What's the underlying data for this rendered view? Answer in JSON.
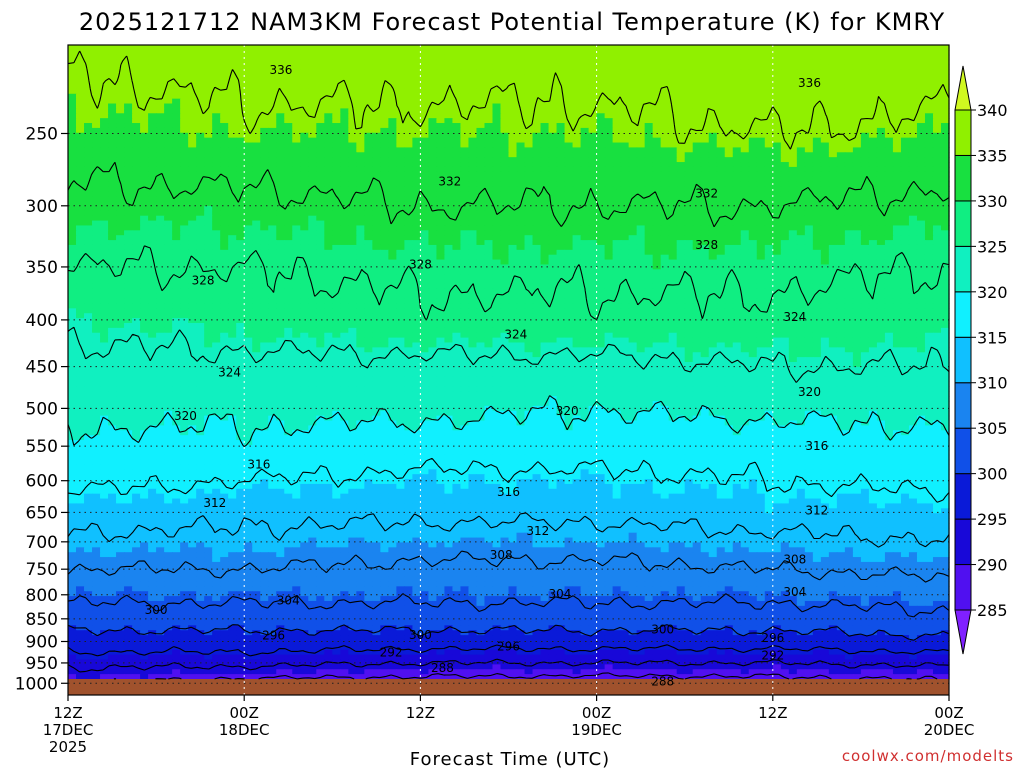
{
  "title": "2025121712 NAM3KM Forecast Potential Temperature (K) for KMRY",
  "credit": "coolwx.com/modelts",
  "chart_data": {
    "type": "heatmap",
    "title": "2025121712 NAM3KM Forecast Potential Temperature (K) for KMRY",
    "xlabel": "Forecast Time (UTC)",
    "ylabel": "",
    "y_scale": "log",
    "ylim": [
      1030,
      200
    ],
    "xlim_hours": [
      0,
      60
    ],
    "x_ticks": [
      {
        "hour": 0,
        "line1": "12Z",
        "line2": "17DEC",
        "line3": "2025"
      },
      {
        "hour": 12,
        "line1": "00Z",
        "line2": "18DEC",
        "line3": ""
      },
      {
        "hour": 24,
        "line1": "12Z",
        "line2": "",
        "line3": ""
      },
      {
        "hour": 36,
        "line1": "00Z",
        "line2": "19DEC",
        "line3": ""
      },
      {
        "hour": 48,
        "line1": "12Z",
        "line2": "",
        "line3": ""
      },
      {
        "hour": 60,
        "line1": "00Z",
        "line2": "20DEC",
        "line3": ""
      }
    ],
    "y_ticks": [
      "250",
      "300",
      "350",
      "400",
      "450",
      "500",
      "550",
      "600",
      "650",
      "700",
      "750",
      "800",
      "850",
      "900",
      "950",
      "1000"
    ],
    "grid": true,
    "colorbar": {
      "position": "right",
      "levels": [
        285,
        290,
        295,
        300,
        305,
        310,
        315,
        320,
        325,
        330,
        335,
        340
      ],
      "labels": [
        "285",
        "290",
        "295",
        "300",
        "305",
        "310",
        "315",
        "320",
        "325",
        "330",
        "335",
        "340"
      ],
      "colors": [
        "#8020ff",
        "#5010f0",
        "#1808d8",
        "#0a1ad8",
        "#1050e8",
        "#1a84f0",
        "#10c0ff",
        "#10f0ff",
        "#10f0c0",
        "#10ee82",
        "#18e040",
        "#90f000",
        "#d0f820"
      ]
    },
    "ground_color": "#a0522d",
    "contour_interval": 4,
    "contour_range": [
      288,
      336
    ],
    "contour_labels": [
      {
        "text": "336",
        "hour": 14.5,
        "p": 213
      },
      {
        "text": "336",
        "hour": 50.5,
        "p": 220
      },
      {
        "text": "332",
        "hour": 26,
        "p": 282
      },
      {
        "text": "332",
        "hour": 43.5,
        "p": 291
      },
      {
        "text": "328",
        "hour": 9.2,
        "p": 362
      },
      {
        "text": "328",
        "hour": 24,
        "p": 348
      },
      {
        "text": "328",
        "hour": 43.5,
        "p": 331
      },
      {
        "text": "324",
        "hour": 11,
        "p": 457
      },
      {
        "text": "324",
        "hour": 30.5,
        "p": 415
      },
      {
        "text": "324",
        "hour": 49.5,
        "p": 397
      },
      {
        "text": "320",
        "hour": 8,
        "p": 510
      },
      {
        "text": "320",
        "hour": 34,
        "p": 503
      },
      {
        "text": "320",
        "hour": 50.5,
        "p": 480
      },
      {
        "text": "316",
        "hour": 13,
        "p": 576
      },
      {
        "text": "316",
        "hour": 30,
        "p": 617
      },
      {
        "text": "316",
        "hour": 51,
        "p": 550
      },
      {
        "text": "312",
        "hour": 10,
        "p": 635
      },
      {
        "text": "312",
        "hour": 32,
        "p": 681
      },
      {
        "text": "312",
        "hour": 51,
        "p": 647
      },
      {
        "text": "308",
        "hour": 29.5,
        "p": 724
      },
      {
        "text": "308",
        "hour": 49.5,
        "p": 732
      },
      {
        "text": "304",
        "hour": 15,
        "p": 812
      },
      {
        "text": "304",
        "hour": 33.5,
        "p": 798
      },
      {
        "text": "304",
        "hour": 49.5,
        "p": 794
      },
      {
        "text": "300",
        "hour": 6,
        "p": 831
      },
      {
        "text": "300",
        "hour": 24,
        "p": 885
      },
      {
        "text": "300",
        "hour": 40.5,
        "p": 873
      },
      {
        "text": "296",
        "hour": 14,
        "p": 887
      },
      {
        "text": "296",
        "hour": 30,
        "p": 912
      },
      {
        "text": "296",
        "hour": 48,
        "p": 892
      },
      {
        "text": "292",
        "hour": 22,
        "p": 925
      },
      {
        "text": "292",
        "hour": 48,
        "p": 932
      },
      {
        "text": "288",
        "hour": 25.5,
        "p": 962
      },
      {
        "text": "288",
        "hour": 40.5,
        "p": 995
      }
    ],
    "profile_levels_hpa": [
      1000,
      975,
      950,
      925,
      900,
      875,
      850,
      800,
      750,
      700,
      650,
      600,
      550,
      500,
      450,
      400,
      350,
      300,
      250,
      200
    ],
    "profile_times_hours": [
      0,
      12,
      24,
      36,
      48,
      60
    ],
    "theta_values_k": [
      [
        288,
        291,
        293,
        296,
        298,
        300,
        302,
        305,
        308,
        311,
        314,
        317,
        319,
        321,
        323,
        325,
        328,
        331,
        334,
        337
      ],
      [
        286,
        290,
        293,
        296,
        298,
        300,
        302,
        305,
        308,
        311,
        313,
        316,
        319,
        321,
        323,
        326,
        328,
        331,
        335,
        338
      ],
      [
        286,
        289,
        292,
        295,
        298,
        300,
        302,
        305,
        307,
        310,
        313,
        315,
        318,
        321,
        323,
        327,
        329,
        332,
        335,
        338
      ],
      [
        285,
        289,
        292,
        295,
        298,
        300,
        302,
        305,
        307,
        310,
        313,
        315,
        318,
        320,
        323,
        327,
        329,
        332,
        335,
        338
      ],
      [
        286,
        289,
        292,
        295,
        298,
        300,
        302,
        305,
        308,
        311,
        314,
        316,
        318,
        321,
        324,
        327,
        329,
        332,
        336,
        339
      ],
      [
        287,
        290,
        293,
        296,
        299,
        301,
        303,
        306,
        309,
        312,
        314,
        317,
        319,
        321,
        324,
        326,
        328,
        331,
        335,
        338
      ]
    ]
  }
}
